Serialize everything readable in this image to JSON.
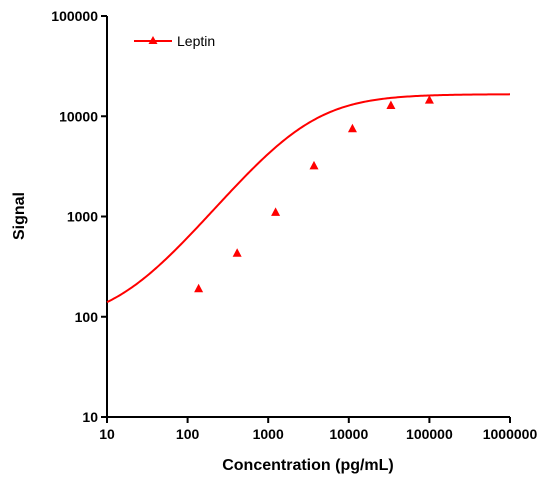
{
  "chart_data": {
    "type": "line",
    "title": "",
    "xlabel": "Concentration (pg/mL)",
    "ylabel": "Signal",
    "x_scale": "log",
    "y_scale": "log",
    "xlim": [
      10,
      1000000
    ],
    "ylim": [
      10,
      100000
    ],
    "x_ticks": [
      10,
      100,
      1000,
      10000,
      100000,
      1000000
    ],
    "x_tick_labels": [
      "10",
      "100",
      "1000",
      "10000",
      "100000",
      "1000000"
    ],
    "y_ticks": [
      10,
      100,
      1000,
      10000,
      100000
    ],
    "y_tick_labels": [
      "10",
      "100",
      "1000",
      "10000",
      "100000"
    ],
    "grid": false,
    "legend_position": "top-left",
    "series": [
      {
        "name": "Leptin",
        "color": "#ff0000",
        "marker": "triangle",
        "points": [
          {
            "x": 137,
            "y": 190
          },
          {
            "x": 412,
            "y": 430
          },
          {
            "x": 1235,
            "y": 1100
          },
          {
            "x": 3700,
            "y": 3200
          },
          {
            "x": 11100,
            "y": 7500
          },
          {
            "x": 33300,
            "y": 12800
          },
          {
            "x": 100000,
            "y": 14500
          }
        ],
        "fit": {
          "model": "4PL",
          "bottom": 85,
          "top": 16600,
          "ec50": 3000,
          "hill": 1.0
        }
      }
    ]
  }
}
